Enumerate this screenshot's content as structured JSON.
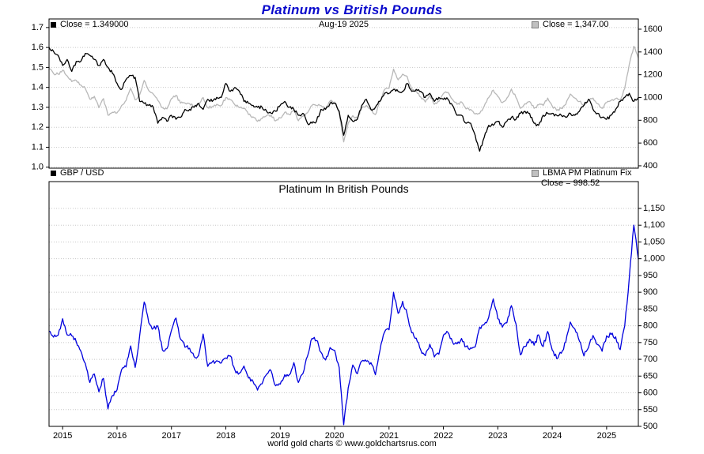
{
  "page": {
    "title": "Platinum vs British Pounds",
    "footer": "world gold charts © www.goldchartsrus.com"
  },
  "top_chart": {
    "close_left": "Close = 1.349000",
    "date": "Aug-19  2025",
    "close_right": "Close = 1,347.00",
    "legend_left": "GBP / USD",
    "legend_right": "LBMA PM Platinum Fix",
    "close_bottom": "Close = 998.52"
  },
  "bottom_chart": {
    "title": "Platinum In British Pounds"
  },
  "colors": {
    "title_blue": "#0a0acc",
    "gbp_usd_line": "#000000",
    "platinum_fix_line": "#b8b8b8",
    "platinum_gbp_line": "#0000dd",
    "gridline": "#c8c8c8"
  },
  "chart_data": [
    {
      "type": "line",
      "panel": "top",
      "x_start": "2014-10",
      "x_end": "2025-08",
      "x_interval": "monthly",
      "x_year_ticks": [
        2015,
        2016,
        2017,
        2018,
        2019,
        2020,
        2021,
        2022,
        2023,
        2024,
        2025
      ],
      "left_axis": {
        "ticks": [
          1.0,
          1.1,
          1.2,
          1.3,
          1.4,
          1.5,
          1.6,
          1.7
        ],
        "tick_labels": [
          "1.0",
          "1.1",
          "1.2",
          "1.3",
          "1.4",
          "1.5",
          "1.6",
          "1.7"
        ],
        "range": [
          0.995,
          1.743
        ]
      },
      "right_axis": {
        "ticks": [
          400,
          600,
          800,
          1000,
          1200,
          1400,
          1600
        ],
        "tick_labels": [
          "400",
          "600",
          "800",
          "1000",
          "1200",
          "1400",
          "1600"
        ],
        "range": [
          379,
          1690
        ]
      },
      "series": [
        {
          "name": "LBMA PM Platinum Fix",
          "axis": "right",
          "color": "#b8b8b8",
          "close": 1347.0,
          "values": [
            1255,
            1210,
            1205,
            1240,
            1190,
            1140,
            1150,
            1110,
            1080,
            985,
            1010,
            910,
            990,
            845,
            870,
            865,
            930,
            975,
            1080,
            980,
            1025,
            1150,
            1060,
            1030,
            975,
            910,
            900,
            990,
            1020,
            950,
            950,
            945,
            920,
            940,
            1000,
            910,
            920,
            940,
            930,
            1000,
            980,
            935,
            910,
            905,
            850,
            830,
            790,
            815,
            840,
            845,
            795,
            820,
            870,
            850,
            890,
            795,
            835,
            865,
            930,
            930,
            930,
            900,
            970,
            960,
            865,
            610,
            775,
            840,
            815,
            910,
            930,
            890,
            850,
            965,
            1070,
            1080,
            1250,
            1155,
            1205,
            1185,
            1075,
            1060,
            1005,
            960,
            1020,
            940,
            965,
            1035,
            1045,
            985,
            940,
            960,
            900,
            895,
            855,
            860,
            925,
            1000,
            1065,
            1010,
            955,
            995,
            1075,
            1000,
            905,
            945,
            965,
            905,
            935,
            930,
            995,
            925,
            885,
            905,
            940,
            1030,
            995,
            965,
            930,
            985,
            995,
            945,
            905,
            955,
            975,
            990,
            970,
            1080,
            1290,
            1450,
            1347
          ]
        },
        {
          "name": "GBP / USD",
          "axis": "left",
          "color": "#000000",
          "close": 1.349,
          "values": [
            1.6,
            1.58,
            1.56,
            1.51,
            1.54,
            1.48,
            1.53,
            1.53,
            1.57,
            1.56,
            1.54,
            1.51,
            1.54,
            1.5,
            1.47,
            1.42,
            1.39,
            1.44,
            1.46,
            1.45,
            1.33,
            1.32,
            1.31,
            1.3,
            1.22,
            1.25,
            1.23,
            1.26,
            1.24,
            1.25,
            1.29,
            1.29,
            1.3,
            1.32,
            1.29,
            1.34,
            1.33,
            1.35,
            1.35,
            1.42,
            1.38,
            1.4,
            1.38,
            1.33,
            1.32,
            1.31,
            1.3,
            1.3,
            1.28,
            1.27,
            1.28,
            1.31,
            1.33,
            1.3,
            1.29,
            1.26,
            1.27,
            1.22,
            1.22,
            1.23,
            1.29,
            1.29,
            1.32,
            1.32,
            1.28,
            1.16,
            1.26,
            1.23,
            1.24,
            1.31,
            1.34,
            1.29,
            1.3,
            1.33,
            1.37,
            1.37,
            1.39,
            1.38,
            1.38,
            1.42,
            1.38,
            1.39,
            1.38,
            1.35,
            1.37,
            1.33,
            1.35,
            1.34,
            1.34,
            1.31,
            1.26,
            1.26,
            1.22,
            1.22,
            1.16,
            1.08,
            1.15,
            1.21,
            1.21,
            1.23,
            1.2,
            1.23,
            1.25,
            1.24,
            1.27,
            1.28,
            1.27,
            1.22,
            1.21,
            1.26,
            1.27,
            1.27,
            1.26,
            1.26,
            1.25,
            1.27,
            1.26,
            1.28,
            1.31,
            1.34,
            1.29,
            1.27,
            1.25,
            1.24,
            1.26,
            1.29,
            1.33,
            1.35,
            1.37,
            1.33,
            1.349
          ]
        }
      ]
    },
    {
      "type": "line",
      "panel": "bottom",
      "title": "Platinum In British Pounds",
      "x_start": "2014-10",
      "x_end": "2025-08",
      "x_interval": "monthly",
      "x_year_ticks": [
        2015,
        2016,
        2017,
        2018,
        2019,
        2020,
        2021,
        2022,
        2023,
        2024,
        2025
      ],
      "right_axis": {
        "ticks": [
          500,
          550,
          600,
          650,
          700,
          750,
          800,
          850,
          900,
          950,
          1000,
          1050,
          1100,
          1150
        ],
        "tick_labels": [
          "500",
          "550",
          "600",
          "650",
          "700",
          "750",
          "800",
          "850",
          "900",
          "950",
          "1,000",
          "1,050",
          "1,100",
          "1,150"
        ],
        "range": [
          500,
          1230
        ]
      },
      "series": [
        {
          "name": "Platinum in British Pounds",
          "axis": "right",
          "color": "#0000dd",
          "close": 998.52,
          "values": [
            784,
            766,
            772,
            821,
            773,
            770,
            752,
            725,
            688,
            631,
            656,
            603,
            643,
            552,
            592,
            609,
            669,
            677,
            740,
            676,
            771,
            871,
            809,
            792,
            799,
            728,
            732,
            786,
            823,
            760,
            736,
            733,
            708,
            712,
            775,
            679,
            692,
            696,
            689,
            704,
            710,
            668,
            659,
            680,
            644,
            634,
            608,
            627,
            656,
            665,
            621,
            626,
            654,
            654,
            690,
            631,
            657,
            709,
            762,
            756,
            721,
            698,
            735,
            727,
            676,
            505,
            615,
            683,
            657,
            695,
            694,
            690,
            654,
            726,
            781,
            788,
            900,
            837,
            873,
            835,
            779,
            763,
            728,
            711,
            745,
            707,
            715,
            772,
            780,
            752,
            746,
            762,
            738,
            734,
            737,
            796,
            804,
            826,
            880,
            821,
            796,
            809,
            860,
            806,
            713,
            738,
            760,
            742,
            773,
            738,
            783,
            728,
            702,
            718,
            752,
            811,
            790,
            754,
            710,
            735,
            771,
            744,
            724,
            770,
            774,
            767,
            729,
            800,
            942,
            1100,
            998.52
          ]
        }
      ]
    }
  ]
}
